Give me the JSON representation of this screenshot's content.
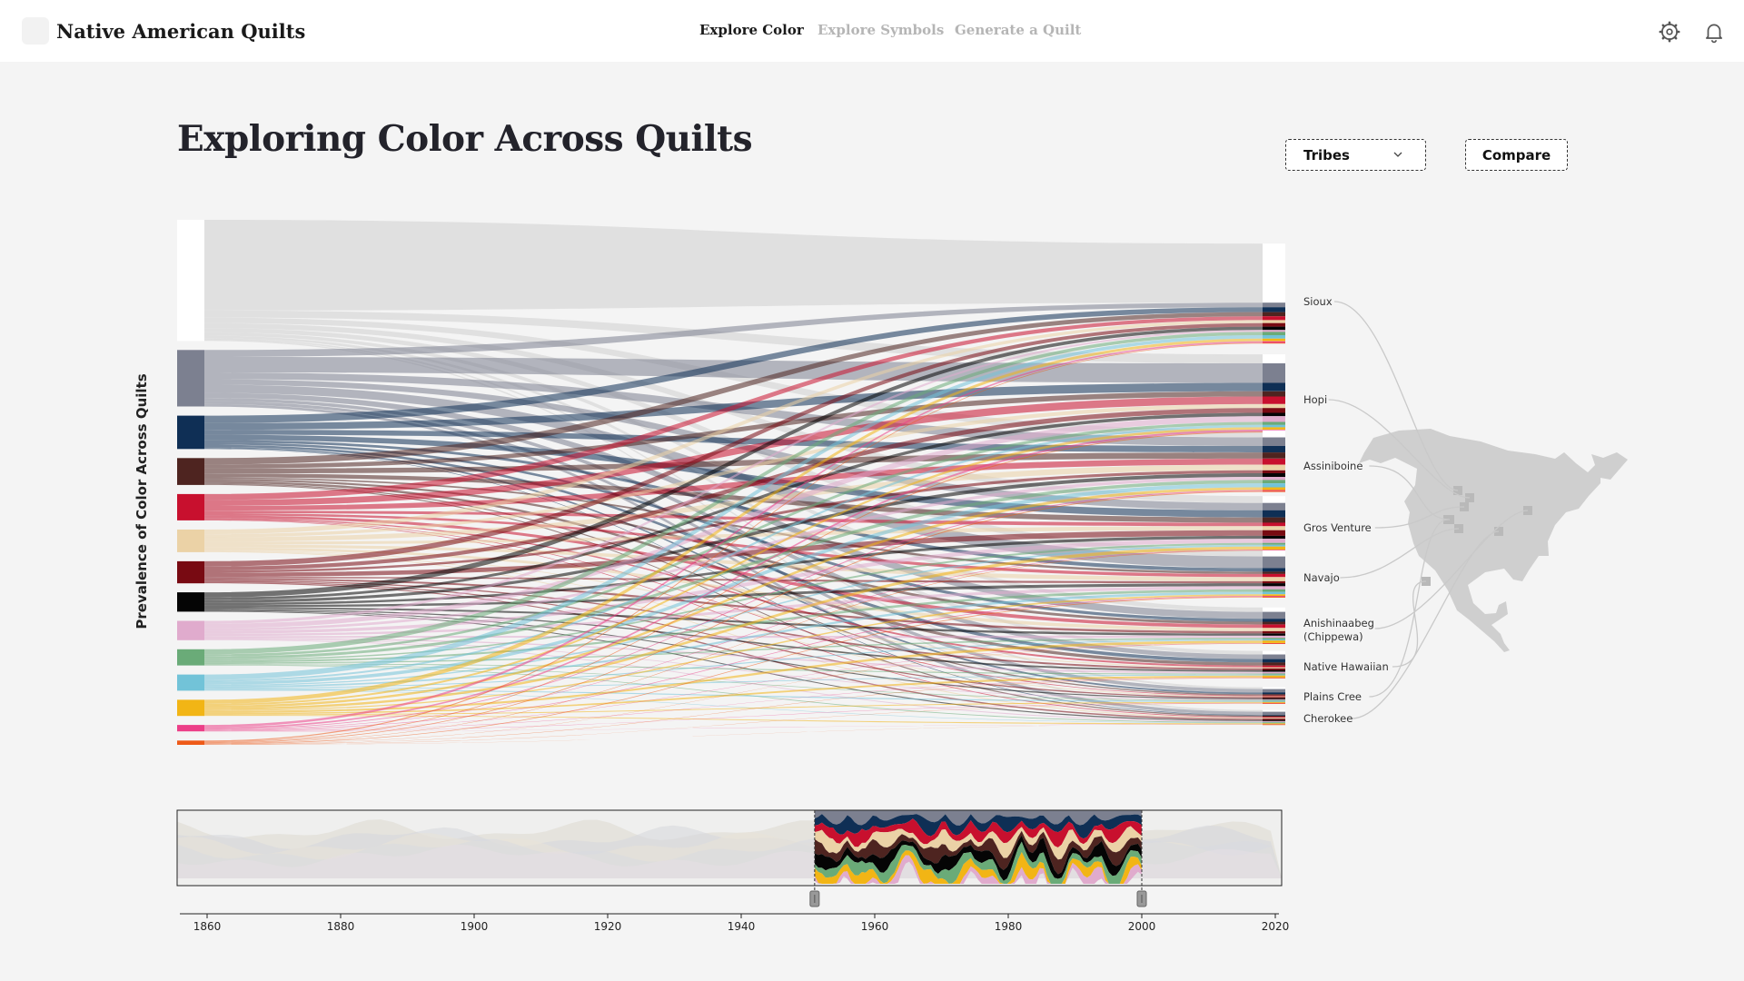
{
  "app": {
    "title": "Native American Quilts",
    "nav": [
      "Explore Color",
      "Explore Symbols",
      "Generate a Quilt"
    ],
    "active_nav": "Explore Color",
    "icons": [
      "settings-icon",
      "bell-icon"
    ]
  },
  "page": {
    "title": "Exploring Color Across Quilts",
    "y_axis_label": "Prevalence of Color Across Quilts"
  },
  "controls": {
    "tribes_label": "Tribes",
    "compare_label": "Compare"
  },
  "colors": {
    "accent": "#1a1a1a",
    "inactive_nav": "#b5b5b5",
    "link_gray": "#d8d8d8"
  },
  "chart_data": {
    "type": "sankey",
    "source_colors": [
      {
        "color": "#ffffff",
        "share": 0.225
      },
      {
        "color": "#7c8090",
        "share": 0.105
      },
      {
        "color": "#0f2f55",
        "share": 0.062
      },
      {
        "color": "#4e2420",
        "share": 0.05
      },
      {
        "color": "#c8102e",
        "share": 0.049
      },
      {
        "color": "#ebd2a6",
        "share": 0.042
      },
      {
        "color": "#780a12",
        "share": 0.041
      },
      {
        "color": "#050505",
        "share": 0.036
      },
      {
        "color": "#e0abcd",
        "share": 0.036
      },
      {
        "color": "#6aab78",
        "share": 0.03
      },
      {
        "color": "#72c3d8",
        "share": 0.03
      },
      {
        "color": "#f2b515",
        "share": 0.03
      },
      {
        "color": "#ec3f88",
        "share": 0.012
      },
      {
        "color": "#ee5a18",
        "share": 0.008
      }
    ],
    "tribes": [
      {
        "label": "Sioux"
      },
      {
        "label": "Hopi"
      },
      {
        "label": "Assiniboine"
      },
      {
        "label": "Gros Venture"
      },
      {
        "label": "Navajo"
      },
      {
        "label": "Anishinaabeg (Chippewa)",
        "lines": [
          "Anishinaabeg",
          "(Chippewa)"
        ]
      },
      {
        "label": "Native Hawaiian"
      },
      {
        "label": "Plains Cree"
      },
      {
        "label": "Cherokee"
      }
    ],
    "timeline": {
      "xticks": [
        1860,
        1880,
        1900,
        1920,
        1940,
        1960,
        1980,
        2000,
        2020
      ],
      "range": [
        1856,
        2020
      ],
      "selection": [
        1951,
        2000
      ]
    }
  }
}
